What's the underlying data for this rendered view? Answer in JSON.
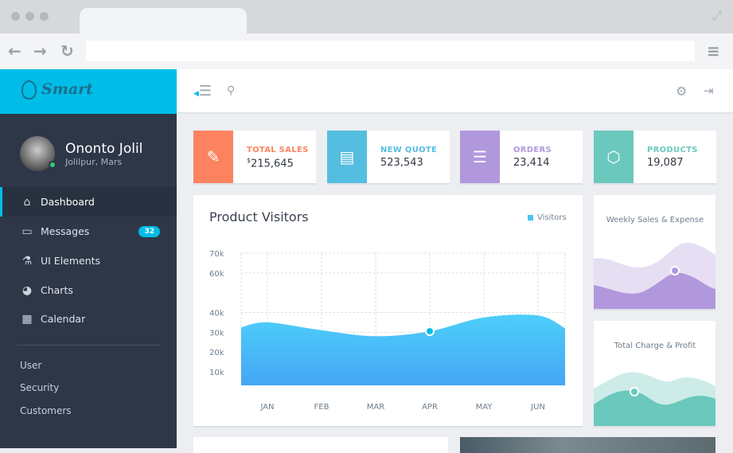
{
  "browser": {
    "icons": [
      "back-arrow",
      "forward-arrow",
      "reload",
      "menu",
      "expand"
    ]
  },
  "app": {
    "logo": "Smart"
  },
  "user": {
    "name": "Ononto Jolil",
    "location": "Jolilpur, Mars",
    "status": "online"
  },
  "sidebar": {
    "items": [
      {
        "label": "Dashboard",
        "icon": "home-icon",
        "active": true
      },
      {
        "label": "Messages",
        "icon": "chat-icon",
        "badge": "32"
      },
      {
        "label": "UI Elements",
        "icon": "flask-icon"
      },
      {
        "label": "Charts",
        "icon": "pie-chart-icon"
      },
      {
        "label": "Calendar",
        "icon": "calendar-icon"
      }
    ],
    "sub_items": [
      "User",
      "Security",
      "Customers"
    ]
  },
  "stats": [
    {
      "label": "TOTAL SALES",
      "currency": "$",
      "value": "215,645",
      "color": "#fd8360",
      "icon": "money-icon"
    },
    {
      "label": "NEW QUOTE",
      "value": "523,543",
      "color": "#55bde0",
      "icon": "document-icon"
    },
    {
      "label": "ORDERS",
      "value": "23,414",
      "color": "#b198dc",
      "icon": "database-icon"
    },
    {
      "label": "PRODUCTS",
      "value": "19,087",
      "color": "#6bc8bd",
      "icon": "cube-icon"
    }
  ],
  "chart_data": {
    "type": "area",
    "title": "Product Visitors",
    "categories": [
      "JAN",
      "FEB",
      "MAR",
      "APR",
      "MAY",
      "JUN"
    ],
    "series": [
      {
        "name": "Visitors",
        "values": [
          35,
          31,
          28,
          30.5,
          37.5,
          38.5
        ],
        "color": "#4cc4f5"
      }
    ],
    "y_ticks": [
      "10k",
      "20k",
      "30k",
      "40k",
      "60k",
      "70k"
    ],
    "y_tick_values": [
      10,
      20,
      30,
      40,
      60,
      70
    ],
    "ylim": [
      4.3,
      70
    ],
    "highlight": "APR",
    "grid": true,
    "legend": "top-right"
  },
  "mini_cards": [
    {
      "title": "Weekly Sales & Expense",
      "colors": [
        "#e6dff3",
        "#b198dc"
      ]
    },
    {
      "title": "Total Charge & Profit",
      "colors": [
        "#cdece7",
        "#6bc8bd"
      ]
    }
  ]
}
